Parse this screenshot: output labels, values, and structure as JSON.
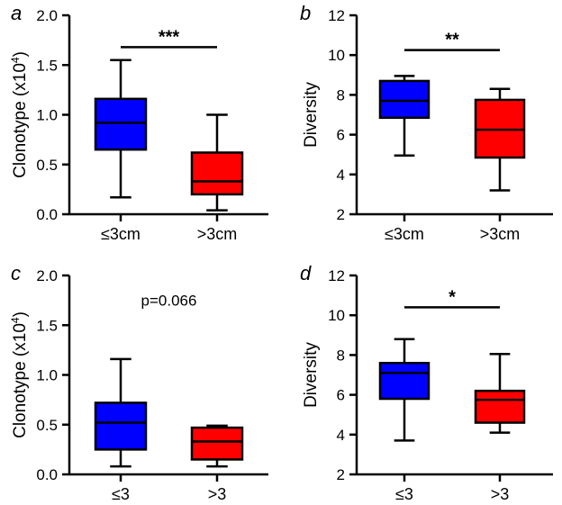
{
  "chart_data": [
    {
      "type": "boxplot",
      "panel": "a",
      "ylabel_main": "Clonotype (x10",
      "ylabel_sup": "4",
      "ylabel_close": ")",
      "ylim": [
        0,
        2.0
      ],
      "yticks": [
        0,
        0.5,
        1.0,
        1.5,
        2.0
      ],
      "ytick_labels": [
        "0.0",
        "0.5",
        "1.0",
        "1.5",
        "2.0"
      ],
      "categories": [
        "≤3cm",
        ">3cm"
      ],
      "colors": [
        "#0000ff",
        "#ff0000"
      ],
      "boxes": [
        {
          "min": 0.17,
          "q1": 0.65,
          "median": 0.92,
          "q3": 1.16,
          "max": 1.55
        },
        {
          "min": 0.04,
          "q1": 0.2,
          "median": 0.33,
          "q3": 0.62,
          "max": 1.0
        }
      ],
      "annotation": {
        "kind": "bracket",
        "text": "***",
        "y": 1.68
      }
    },
    {
      "type": "boxplot",
      "panel": "b",
      "ylabel_main": "Diversity",
      "ylim": [
        2,
        12
      ],
      "yticks": [
        2,
        4,
        6,
        8,
        10,
        12
      ],
      "ytick_labels": [
        "2",
        "4",
        "6",
        "8",
        "10",
        "12"
      ],
      "categories": [
        "≤3cm",
        ">3cm"
      ],
      "colors": [
        "#0000ff",
        "#ff0000"
      ],
      "boxes": [
        {
          "min": 4.95,
          "q1": 6.85,
          "median": 7.7,
          "q3": 8.7,
          "max": 8.95
        },
        {
          "min": 3.2,
          "q1": 4.85,
          "median": 6.25,
          "q3": 7.75,
          "max": 8.3
        }
      ],
      "annotation": {
        "kind": "bracket",
        "text": "**",
        "y": 10.25
      }
    },
    {
      "type": "boxplot",
      "panel": "c",
      "ylabel_main": "Clonotype (x10",
      "ylabel_sup": "4",
      "ylabel_close": ")",
      "ylim": [
        0,
        2.0
      ],
      "yticks": [
        0,
        0.5,
        1.0,
        1.5,
        2.0
      ],
      "ytick_labels": [
        "0.0",
        "0.5",
        "1.0",
        "1.5",
        "2.0"
      ],
      "categories": [
        "≤3",
        ">3"
      ],
      "colors": [
        "#0000ff",
        "#ff0000"
      ],
      "boxes": [
        {
          "min": 0.08,
          "q1": 0.25,
          "median": 0.52,
          "q3": 0.72,
          "max": 1.16
        },
        {
          "min": 0.08,
          "q1": 0.15,
          "median": 0.33,
          "q3": 0.47,
          "max": 0.49
        }
      ],
      "annotation": {
        "kind": "text",
        "text": "p=0.066",
        "y": 1.75
      }
    },
    {
      "type": "boxplot",
      "panel": "d",
      "ylabel_main": "Diversity",
      "ylim": [
        2,
        12
      ],
      "yticks": [
        2,
        4,
        6,
        8,
        10,
        12
      ],
      "ytick_labels": [
        "2",
        "4",
        "6",
        "8",
        "10",
        "12"
      ],
      "categories": [
        "≤3",
        ">3"
      ],
      "colors": [
        "#0000ff",
        "#ff0000"
      ],
      "boxes": [
        {
          "min": 3.7,
          "q1": 5.8,
          "median": 7.1,
          "q3": 7.6,
          "max": 8.8
        },
        {
          "min": 4.1,
          "q1": 4.6,
          "median": 5.75,
          "q3": 6.2,
          "max": 8.05
        }
      ],
      "annotation": {
        "kind": "bracket",
        "text": "*",
        "y": 10.4
      }
    }
  ]
}
